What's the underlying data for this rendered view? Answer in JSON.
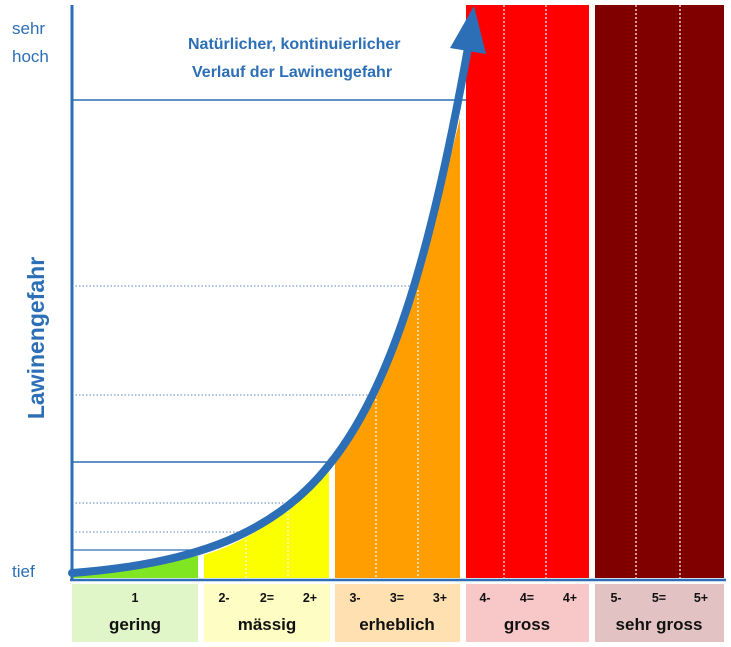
{
  "diagram": {
    "title_line1": "Natürlicher, kontinuierlicher",
    "title_line2": "Verlauf der Lawinengefahr",
    "y_axis_label": "Lawinengefahr",
    "y_top_line1": "sehr",
    "y_top_line2": "hoch",
    "y_bottom": "tief",
    "colors": {
      "axis": "#2c6fb6",
      "gering": "#80e621",
      "maessig": "#fbff00",
      "erheblich": "#ff9e00",
      "gross": "#ff0000",
      "sehr_gross": "#800000"
    },
    "levels": [
      {
        "label": "gering",
        "color": "#80e621",
        "label_bg": "#e0f5c8",
        "sublevels": [
          "1"
        ]
      },
      {
        "label": "mässig",
        "color": "#fbff00",
        "label_bg": "#fdfdc4",
        "sublevels": [
          "2-",
          "2=",
          "2+"
        ]
      },
      {
        "label": "erheblich",
        "color": "#ff9e00",
        "label_bg": "#ffe0b0",
        "sublevels": [
          "3-",
          "3=",
          "3+"
        ]
      },
      {
        "label": "gross",
        "color": "#ff0000",
        "label_bg": "#f8c8c8",
        "sublevels": [
          "4-",
          "4=",
          "4+"
        ]
      },
      {
        "label": "sehr gross",
        "color": "#800000",
        "label_bg": "#e2c2c2",
        "sublevels": [
          "5-",
          "5=",
          "5+"
        ]
      }
    ]
  }
}
